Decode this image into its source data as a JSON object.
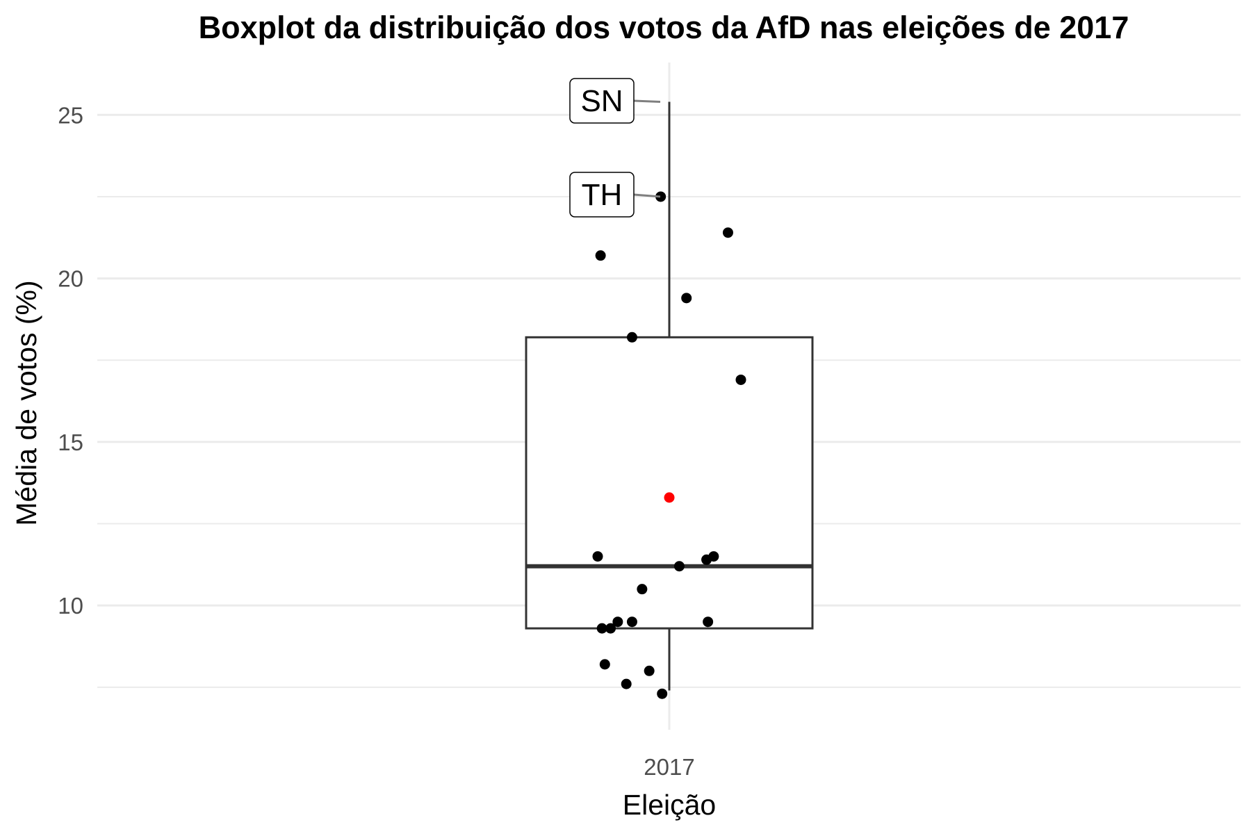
{
  "chart_data": {
    "type": "boxplot",
    "title": "Boxplot da distribuição dos votos da AfD nas eleições de 2017",
    "xlabel": "Eleição",
    "ylabel": "Média de votos (%)",
    "categories": [
      "2017"
    ],
    "ylim": [
      6.2,
      26.6
    ],
    "yticks": [
      10,
      15,
      20,
      25
    ],
    "grid": "horizontal",
    "box": {
      "category": "2017",
      "whisker_low": 7.4,
      "q1": 9.3,
      "median": 11.2,
      "q3": 18.2,
      "whisker_high": 25.4
    },
    "mean": {
      "value": 13.3,
      "color": "#ff0000"
    },
    "points": [
      {
        "offset": -0.06,
        "y": 22.5
      },
      {
        "offset": -0.48,
        "y": 20.7
      },
      {
        "offset": 0.41,
        "y": 21.4
      },
      {
        "offset": 0.12,
        "y": 19.4
      },
      {
        "offset": -0.26,
        "y": 18.2
      },
      {
        "offset": 0.5,
        "y": 16.9
      },
      {
        "offset": -0.5,
        "y": 11.5
      },
      {
        "offset": 0.26,
        "y": 11.4
      },
      {
        "offset": 0.31,
        "y": 11.5
      },
      {
        "offset": 0.07,
        "y": 11.2
      },
      {
        "offset": -0.19,
        "y": 10.5
      },
      {
        "offset": -0.47,
        "y": 9.3
      },
      {
        "offset": -0.41,
        "y": 9.3
      },
      {
        "offset": -0.36,
        "y": 9.5
      },
      {
        "offset": -0.26,
        "y": 9.5
      },
      {
        "offset": 0.27,
        "y": 9.5
      },
      {
        "offset": -0.45,
        "y": 8.2
      },
      {
        "offset": -0.14,
        "y": 8.0
      },
      {
        "offset": -0.3,
        "y": 7.6
      },
      {
        "offset": -0.05,
        "y": 7.3
      }
    ],
    "labels": [
      {
        "text": "SN",
        "y": 25.4
      },
      {
        "text": "TH",
        "y": 22.5
      }
    ],
    "colors": {
      "point": "#000000",
      "mean": "#ff0000",
      "box": "#333333",
      "grid": "#ebebeb",
      "label_line": "#7f7f7f"
    }
  }
}
